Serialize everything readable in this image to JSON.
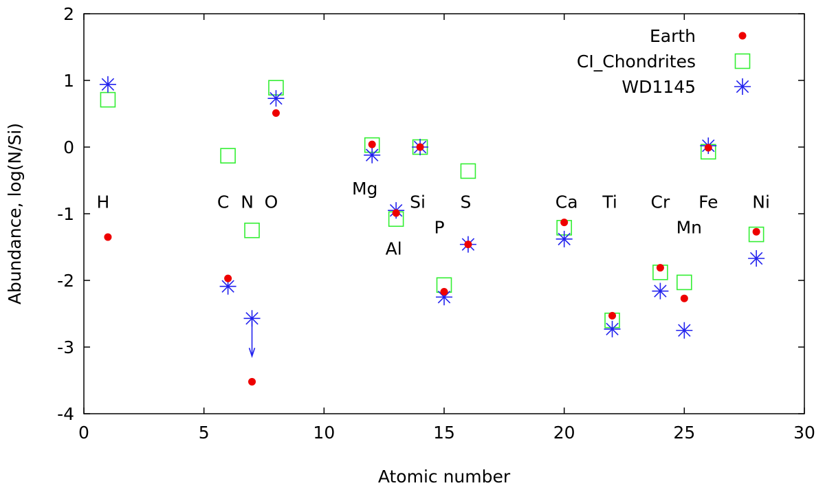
{
  "chart_data": {
    "type": "scatter",
    "title": "",
    "xlabel": "Atomic number",
    "ylabel": "Abundance, log(N/Si)",
    "xlim": [
      0,
      30
    ],
    "ylim": [
      -4,
      2
    ],
    "xticks": [
      0,
      5,
      10,
      15,
      20,
      25,
      30
    ],
    "yticks": [
      -4,
      -3,
      -2,
      -1,
      0,
      1,
      2
    ],
    "grid": false,
    "legend_position": "top-right",
    "series": [
      {
        "name": "Earth",
        "marker": "filled-circle",
        "color": "#ee0000",
        "points": [
          {
            "x": 1,
            "y": -1.35
          },
          {
            "x": 6,
            "y": -1.97
          },
          {
            "x": 7,
            "y": -3.52
          },
          {
            "x": 8,
            "y": 0.51
          },
          {
            "x": 12,
            "y": 0.04
          },
          {
            "x": 13,
            "y": -0.99
          },
          {
            "x": 14,
            "y": 0.0
          },
          {
            "x": 15,
            "y": -2.17
          },
          {
            "x": 16,
            "y": -1.46
          },
          {
            "x": 20,
            "y": -1.13
          },
          {
            "x": 22,
            "y": -2.53
          },
          {
            "x": 24,
            "y": -1.81
          },
          {
            "x": 25,
            "y": -2.27
          },
          {
            "x": 26,
            "y": -0.01
          },
          {
            "x": 28,
            "y": -1.27
          }
        ]
      },
      {
        "name": "CI_Chondrites",
        "marker": "open-square",
        "color": "#33ee33",
        "points": [
          {
            "x": 1,
            "y": 0.71
          },
          {
            "x": 6,
            "y": -0.13
          },
          {
            "x": 7,
            "y": -1.25
          },
          {
            "x": 8,
            "y": 0.89
          },
          {
            "x": 12,
            "y": 0.03
          },
          {
            "x": 13,
            "y": -1.08
          },
          {
            "x": 14,
            "y": 0.0
          },
          {
            "x": 15,
            "y": -2.07
          },
          {
            "x": 16,
            "y": -0.36
          },
          {
            "x": 20,
            "y": -1.21
          },
          {
            "x": 22,
            "y": -2.6
          },
          {
            "x": 24,
            "y": -1.88
          },
          {
            "x": 25,
            "y": -2.03
          },
          {
            "x": 26,
            "y": -0.07
          },
          {
            "x": 28,
            "y": -1.31
          }
        ]
      },
      {
        "name": "WD1145",
        "marker": "asterisk",
        "color": "#2222ee",
        "points": [
          {
            "x": 1,
            "y": 0.94
          },
          {
            "x": 6,
            "y": -2.09
          },
          {
            "x": 7,
            "y": -2.57,
            "upper_limit": true
          },
          {
            "x": 8,
            "y": 0.73
          },
          {
            "x": 12,
            "y": -0.12
          },
          {
            "x": 13,
            "y": -0.95
          },
          {
            "x": 14,
            "y": 0.0
          },
          {
            "x": 15,
            "y": -2.25
          },
          {
            "x": 16,
            "y": -1.46
          },
          {
            "x": 20,
            "y": -1.38
          },
          {
            "x": 22,
            "y": -2.73
          },
          {
            "x": 24,
            "y": -2.16
          },
          {
            "x": 25,
            "y": -2.75
          },
          {
            "x": 26,
            "y": 0.02
          },
          {
            "x": 28,
            "y": -1.67
          }
        ]
      }
    ],
    "annotations": [
      {
        "text": "H",
        "x": 0.8,
        "y": -0.82
      },
      {
        "text": "C",
        "x": 5.8,
        "y": -0.82
      },
      {
        "text": "N",
        "x": 6.8,
        "y": -0.82
      },
      {
        "text": "O",
        "x": 7.8,
        "y": -0.82
      },
      {
        "text": "Mg",
        "x": 11.7,
        "y": -0.62
      },
      {
        "text": "Si",
        "x": 13.9,
        "y": -0.82
      },
      {
        "text": "S",
        "x": 15.9,
        "y": -0.82
      },
      {
        "text": "P",
        "x": 14.8,
        "y": -1.2
      },
      {
        "text": "Al",
        "x": 12.9,
        "y": -1.52
      },
      {
        "text": "Ca",
        "x": 20.1,
        "y": -0.82
      },
      {
        "text": "Ti",
        "x": 21.9,
        "y": -0.82
      },
      {
        "text": "Cr",
        "x": 24.0,
        "y": -0.82
      },
      {
        "text": "Fe",
        "x": 26.0,
        "y": -0.82
      },
      {
        "text": "Ni",
        "x": 28.2,
        "y": -0.82
      },
      {
        "text": "Mn",
        "x": 25.2,
        "y": -1.2
      }
    ]
  }
}
